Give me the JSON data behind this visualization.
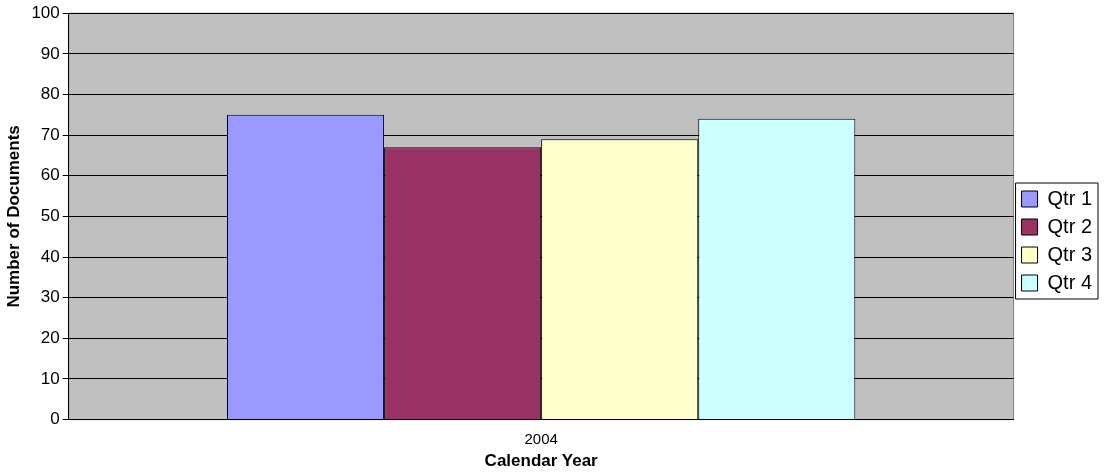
{
  "chart_data": {
    "type": "bar",
    "xlabel": "Calendar Year",
    "ylabel": "Number of Documents",
    "categories": [
      "2004"
    ],
    "series": [
      {
        "name": "Qtr 1",
        "color": "#9999ff",
        "values": [
          75
        ]
      },
      {
        "name": "Qtr 2",
        "color": "#993366",
        "values": [
          67
        ]
      },
      {
        "name": "Qtr 3",
        "color": "#ffffcc",
        "values": [
          69
        ]
      },
      {
        "name": "Qtr 4",
        "color": "#ccffff",
        "values": [
          74
        ]
      }
    ],
    "ylim": [
      0,
      100
    ],
    "yticks": [
      0,
      10,
      20,
      30,
      40,
      50,
      60,
      70,
      80,
      90,
      100
    ],
    "grid": "y",
    "legend": "right"
  }
}
